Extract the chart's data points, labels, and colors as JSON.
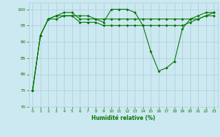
{
  "x": [
    0,
    1,
    2,
    3,
    4,
    5,
    6,
    7,
    8,
    9,
    10,
    11,
    12,
    13,
    14,
    15,
    16,
    17,
    18,
    19,
    20,
    21,
    22,
    23
  ],
  "y_main": [
    75,
    92,
    97,
    98,
    99,
    99,
    97,
    97,
    97,
    96,
    100,
    100,
    100,
    99,
    95,
    87,
    81,
    82,
    84,
    94,
    97,
    98,
    99,
    99
  ],
  "y_line2": [
    75,
    92,
    97,
    98,
    98,
    98,
    98,
    98,
    97,
    97,
    97,
    97,
    97,
    97,
    97,
    97,
    97,
    97,
    97,
    97,
    97,
    97,
    98,
    99
  ],
  "y_line3": [
    75,
    92,
    97,
    97,
    98,
    98,
    96,
    96,
    96,
    95,
    95,
    95,
    95,
    95,
    95,
    95,
    95,
    95,
    95,
    95,
    96,
    97,
    98,
    98
  ],
  "line_color": "#007700",
  "bg_color": "#cce8f0",
  "grid_color": "#aaccdd",
  "xlabel": "Humidité relative (%)",
  "ylim": [
    70,
    102
  ],
  "xlim": [
    -0.5,
    23.5
  ],
  "yticks": [
    70,
    75,
    80,
    85,
    90,
    95,
    100
  ],
  "xticks": [
    0,
    1,
    2,
    3,
    4,
    5,
    6,
    7,
    8,
    9,
    10,
    11,
    12,
    13,
    14,
    15,
    16,
    17,
    18,
    19,
    20,
    21,
    22,
    23
  ]
}
